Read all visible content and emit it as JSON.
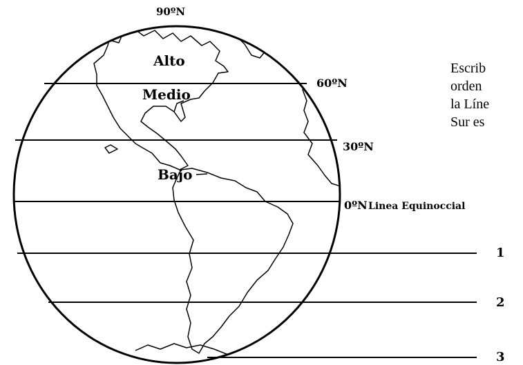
{
  "instruction_lines": [
    "Escrib",
    "orden",
    "la Líne",
    "Sur es"
  ],
  "zones": {
    "alto": "Alto",
    "medio": "Medio",
    "bajo": "Bajo"
  },
  "latitudes": {
    "north_90": "90ºN",
    "north_60": "60ºN",
    "north_30": "30ºN",
    "equator": "0ºN",
    "equator_name": "Linea Equinoccial"
  },
  "answer_lines": [
    "1",
    "2",
    "3"
  ]
}
